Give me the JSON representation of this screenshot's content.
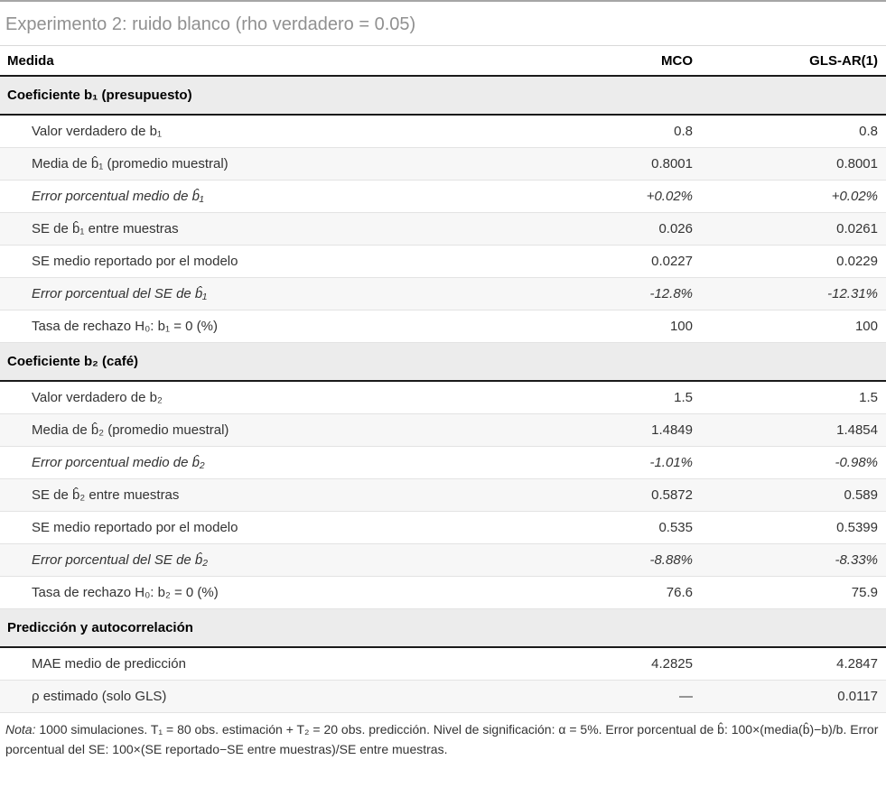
{
  "title": "Experimento 2: ruido blanco (rho verdadero = 0.05)",
  "colors": {
    "title_text": "#909090",
    "section_band_bg": "#ececec",
    "stripe_bg": "#f7f7f7",
    "heavy_border": "#1a1a1a",
    "light_border": "#e3e3e3",
    "top_border": "#a6a6a6"
  },
  "table": {
    "columns": [
      "Medida",
      "MCO",
      "GLS-AR(1)"
    ],
    "sections": [
      {
        "header": "Coeficiente b₁ (presupuesto)",
        "rows": [
          {
            "label": "Valor verdadero de b₁",
            "mco": "0.8",
            "gls": "0.8",
            "italic": false
          },
          {
            "label": "Media de b̂₁ (promedio muestral)",
            "mco": "0.8001",
            "gls": "0.8001",
            "italic": false
          },
          {
            "label": "Error porcentual medio de b̂₁",
            "mco": "+0.02%",
            "gls": "+0.02%",
            "italic": true
          },
          {
            "label": "SE de b̂₁ entre muestras",
            "mco": "0.026",
            "gls": "0.0261",
            "italic": false
          },
          {
            "label": "SE medio reportado por el modelo",
            "mco": "0.0227",
            "gls": "0.0229",
            "italic": false
          },
          {
            "label": "Error porcentual del SE de b̂₁",
            "mco": "-12.8%",
            "gls": "-12.31%",
            "italic": true
          },
          {
            "label": "Tasa de rechazo H₀: b₁ = 0 (%)",
            "mco": "100",
            "gls": "100",
            "italic": false
          }
        ]
      },
      {
        "header": "Coeficiente b₂ (café)",
        "rows": [
          {
            "label": "Valor verdadero de b₂",
            "mco": "1.5",
            "gls": "1.5",
            "italic": false
          },
          {
            "label": "Media de b̂₂ (promedio muestral)",
            "mco": "1.4849",
            "gls": "1.4854",
            "italic": false
          },
          {
            "label": "Error porcentual medio de b̂₂",
            "mco": "-1.01%",
            "gls": "-0.98%",
            "italic": true
          },
          {
            "label": "SE de b̂₂ entre muestras",
            "mco": "0.5872",
            "gls": "0.589",
            "italic": false
          },
          {
            "label": "SE medio reportado por el modelo",
            "mco": "0.535",
            "gls": "0.5399",
            "italic": false
          },
          {
            "label": "Error porcentual del SE de b̂₂",
            "mco": "-8.88%",
            "gls": "-8.33%",
            "italic": true
          },
          {
            "label": "Tasa de rechazo H₀: b₂ = 0 (%)",
            "mco": "76.6",
            "gls": "75.9",
            "italic": false
          }
        ]
      },
      {
        "header": "Predicción y autocorrelación",
        "rows": [
          {
            "label": "MAE medio de predicción",
            "mco": "4.2825",
            "gls": "4.2847",
            "italic": false
          },
          {
            "label": "ρ estimado (solo GLS)",
            "mco": "—",
            "gls": "0.0117",
            "italic": false
          }
        ]
      }
    ]
  },
  "footnote": {
    "label": "Nota:",
    "text": "1000 simulaciones. T₁ = 80 obs. estimación + T₂ = 20 obs. predicción. Nivel de significación: α = 5%. Error porcentual de b̂: 100×(media(b̂)−b)/b. Error porcentual del SE: 100×(SE reportado−SE entre muestras)/SE entre muestras."
  }
}
